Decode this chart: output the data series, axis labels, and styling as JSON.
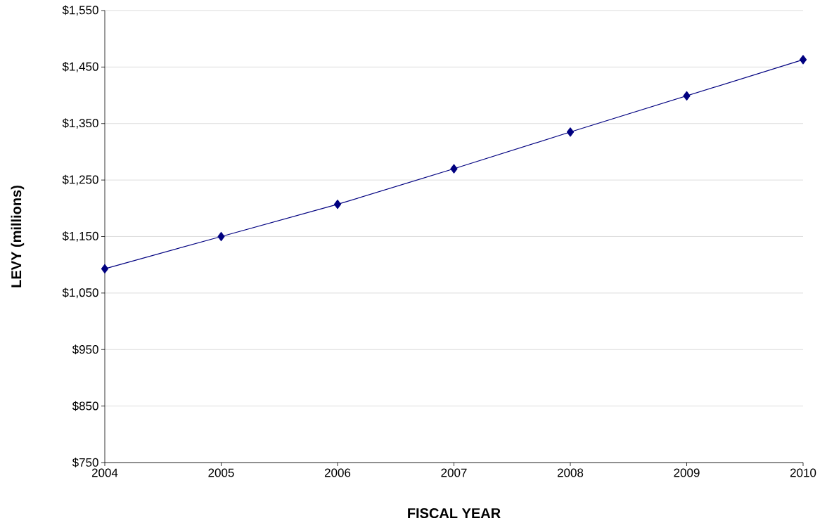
{
  "chart_data": {
    "type": "line",
    "xlabel": "FISCAL YEAR",
    "ylabel": "LEVY (millions)",
    "x": [
      2004,
      2005,
      2006,
      2007,
      2008,
      2009,
      2010
    ],
    "series": [
      {
        "color": "#000080",
        "values": [
          1093,
          1150,
          1207,
          1270,
          1335,
          1399,
          1463
        ]
      }
    ],
    "xlim": [
      2004,
      2010
    ],
    "xticks": [
      2004,
      2005,
      2006,
      2007,
      2008,
      2009,
      2010
    ],
    "ylim": [
      750,
      1550
    ],
    "yticks": [
      {
        "value": 750,
        "label": "$750"
      },
      {
        "value": 850,
        "label": "$850"
      },
      {
        "value": 950,
        "label": "$950"
      },
      {
        "value": 1050,
        "label": "$1,050"
      },
      {
        "value": 1150,
        "label": "$1,150"
      },
      {
        "value": 1250,
        "label": "$1,250"
      },
      {
        "value": 1350,
        "label": "$1,350"
      },
      {
        "value": 1450,
        "label": "$1,450"
      },
      {
        "value": 1550,
        "label": "$1,550"
      }
    ],
    "grid": "y",
    "marker": "diamond",
    "line_style": "solid"
  }
}
